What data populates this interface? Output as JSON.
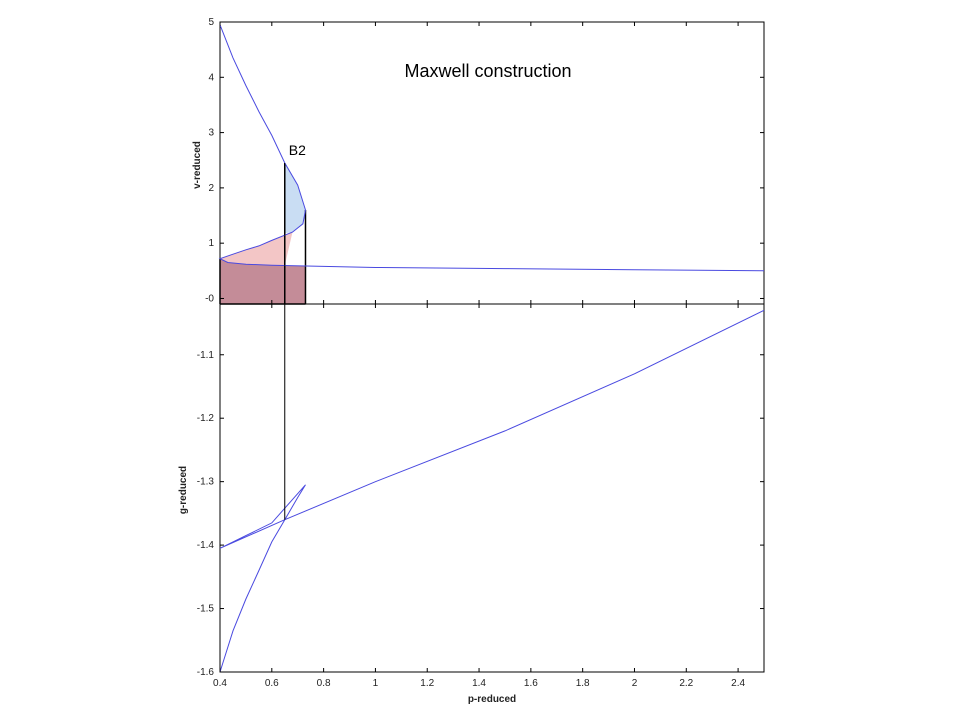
{
  "chart_data": [
    {
      "type": "line",
      "id": "top",
      "title": "Maxwell construction",
      "xlabel": "",
      "ylabel": "v-reduced",
      "xlim": [
        0.4,
        2.5
      ],
      "ylim": [
        -0.1,
        5
      ],
      "yticks": [
        0,
        1,
        2,
        3,
        4,
        5
      ],
      "ytick_labels": [
        "-0",
        "1",
        "2",
        "3",
        "4",
        "5"
      ],
      "grid": false,
      "annotations": [
        {
          "text": "B2",
          "x": 0.65,
          "y": 2.45
        }
      ],
      "colors": {
        "line": "#4a4ae0",
        "fill_blue": "#c9ddf3",
        "fill_pink": "#f0b8b8",
        "fill_mauve": "#c48c98"
      },
      "series": [
        {
          "values": [
            {
              "x": 0.4,
              "y": 4.95
            },
            {
              "x": 0.45,
              "y": 4.35
            },
            {
              "x": 0.5,
              "y": 3.85
            },
            {
              "x": 0.55,
              "y": 3.38
            },
            {
              "x": 0.6,
              "y": 2.95
            },
            {
              "x": 0.65,
              "y": 2.45
            },
            {
              "x": 0.7,
              "y": 2.05
            },
            {
              "x": 0.73,
              "y": 1.6
            },
            {
              "x": 0.72,
              "y": 1.35
            },
            {
              "x": 0.68,
              "y": 1.2
            },
            {
              "x": 0.6,
              "y": 1.05
            },
            {
              "x": 0.55,
              "y": 0.95
            },
            {
              "x": 0.5,
              "y": 0.88
            },
            {
              "x": 0.45,
              "y": 0.8
            },
            {
              "x": 0.4,
              "y": 0.72
            },
            {
              "x": 0.43,
              "y": 0.65
            },
            {
              "x": 0.5,
              "y": 0.62
            },
            {
              "x": 0.6,
              "y": 0.6
            },
            {
              "x": 0.8,
              "y": 0.58
            },
            {
              "x": 1.0,
              "y": 0.56
            },
            {
              "x": 1.5,
              "y": 0.54
            },
            {
              "x": 2.0,
              "y": 0.52
            },
            {
              "x": 2.5,
              "y": 0.5
            }
          ]
        }
      ]
    },
    {
      "type": "line",
      "id": "bottom",
      "title": "",
      "xlabel": "p-reduced",
      "ylabel": "g-reduced",
      "xlim": [
        0.4,
        2.5
      ],
      "ylim": [
        -1.6,
        -1.02
      ],
      "xticks": [
        0.4,
        0.6,
        0.8,
        1,
        1.2,
        1.4,
        1.6,
        1.8,
        2,
        2.2,
        2.4
      ],
      "xtick_labels": [
        "0.4",
        "0.6",
        "0.8",
        "1",
        "1.2",
        "1.4",
        "1.6",
        "1.8",
        "2",
        "2.2",
        "2.4"
      ],
      "yticks": [
        -1.1,
        -1.2,
        -1.3,
        -1.4,
        -1.5,
        -1.6
      ],
      "ytick_labels": [
        "-1.1",
        "-1.2",
        "-1.3",
        "-1.4",
        "-1.5",
        "-1.6"
      ],
      "grid": false,
      "series": [
        {
          "values": [
            {
              "x": 0.4,
              "y": -1.6
            },
            {
              "x": 0.45,
              "y": -1.535
            },
            {
              "x": 0.5,
              "y": -1.485
            },
            {
              "x": 0.55,
              "y": -1.44
            },
            {
              "x": 0.6,
              "y": -1.395
            },
            {
              "x": 0.65,
              "y": -1.36
            },
            {
              "x": 0.7,
              "y": -1.325
            },
            {
              "x": 0.73,
              "y": -1.305
            },
            {
              "x": 0.6,
              "y": -1.365
            },
            {
              "x": 0.5,
              "y": -1.385
            },
            {
              "x": 0.4,
              "y": -1.405
            },
            {
              "x": 0.65,
              "y": -1.36
            },
            {
              "x": 1.0,
              "y": -1.3
            },
            {
              "x": 1.5,
              "y": -1.22
            },
            {
              "x": 2.0,
              "y": -1.13
            },
            {
              "x": 2.5,
              "y": -1.03
            }
          ]
        }
      ]
    }
  ]
}
